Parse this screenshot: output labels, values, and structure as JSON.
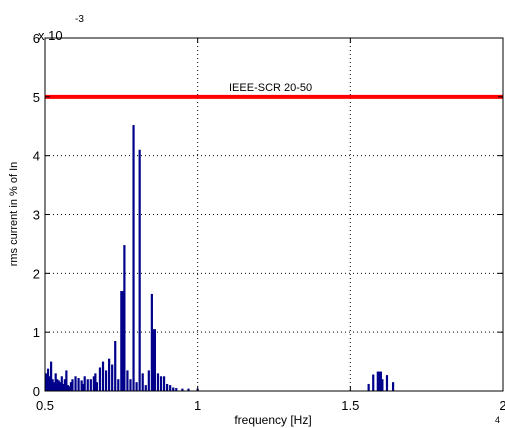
{
  "chart_data": {
    "type": "bar",
    "title": "",
    "xlabel": "frequency [Hz]",
    "ylabel": "rms current in % of In",
    "y_exponent_label": "x 10",
    "y_exponent_power": "-3",
    "x_corner_label": "4",
    "xlim": [
      0.5,
      2.0
    ],
    "ylim": [
      0,
      6
    ],
    "grid": true,
    "grid_style": "dotted",
    "x_ticks": [
      0.5,
      1.0,
      1.5,
      2.0
    ],
    "x_tick_labels": [
      "0.5",
      "1",
      "1.5",
      "2"
    ],
    "y_ticks": [
      0,
      1,
      2,
      3,
      4,
      5,
      6
    ],
    "y_tick_labels": [
      "0",
      "1",
      "2",
      "3",
      "4",
      "5",
      "6"
    ],
    "bar_color": "#00008b",
    "limit_line": {
      "label": "IEEE-SCR 20-50",
      "value": 5.0,
      "color": "#ff0000"
    },
    "series": [
      {
        "x": [
          0.505,
          0.51,
          0.515,
          0.52,
          0.525,
          0.53,
          0.535,
          0.54,
          0.545,
          0.55,
          0.555,
          0.56,
          0.565,
          0.57,
          0.575,
          0.58,
          0.585,
          0.59,
          0.6,
          0.61,
          0.62,
          0.625,
          0.63,
          0.64,
          0.65,
          0.66,
          0.665,
          0.67,
          0.68,
          0.69,
          0.7,
          0.71,
          0.72,
          0.73,
          0.74,
          0.75,
          0.755,
          0.76,
          0.77,
          0.78,
          0.79,
          0.8,
          0.81,
          0.82,
          0.83,
          0.84,
          0.85,
          0.855,
          0.86,
          0.87,
          0.88,
          0.89,
          0.9,
          0.91,
          0.92,
          0.93,
          0.95,
          0.97,
          1.0,
          1.56,
          1.575,
          1.59,
          1.595,
          1.6,
          1.605,
          1.62,
          1.64
        ],
        "values": [
          0.3,
          0.38,
          0.25,
          0.5,
          0.2,
          0.15,
          0.3,
          0.2,
          0.18,
          0.15,
          0.25,
          0.12,
          0.2,
          0.35,
          0.1,
          0.08,
          0.15,
          0.2,
          0.25,
          0.22,
          0.18,
          0.12,
          0.25,
          0.2,
          0.2,
          0.25,
          0.3,
          0.15,
          0.4,
          0.5,
          0.35,
          0.55,
          0.45,
          0.85,
          0.2,
          1.7,
          1.7,
          2.48,
          0.35,
          0.2,
          4.52,
          0.15,
          4.1,
          0.3,
          0.1,
          0.35,
          1.65,
          1.05,
          1.05,
          0.3,
          0.25,
          0.25,
          0.12,
          0.1,
          0.06,
          0.05,
          0.04,
          0.04,
          0.04,
          0.12,
          0.28,
          0.33,
          0.33,
          0.33,
          0.2,
          0.27,
          0.15
        ]
      }
    ]
  }
}
